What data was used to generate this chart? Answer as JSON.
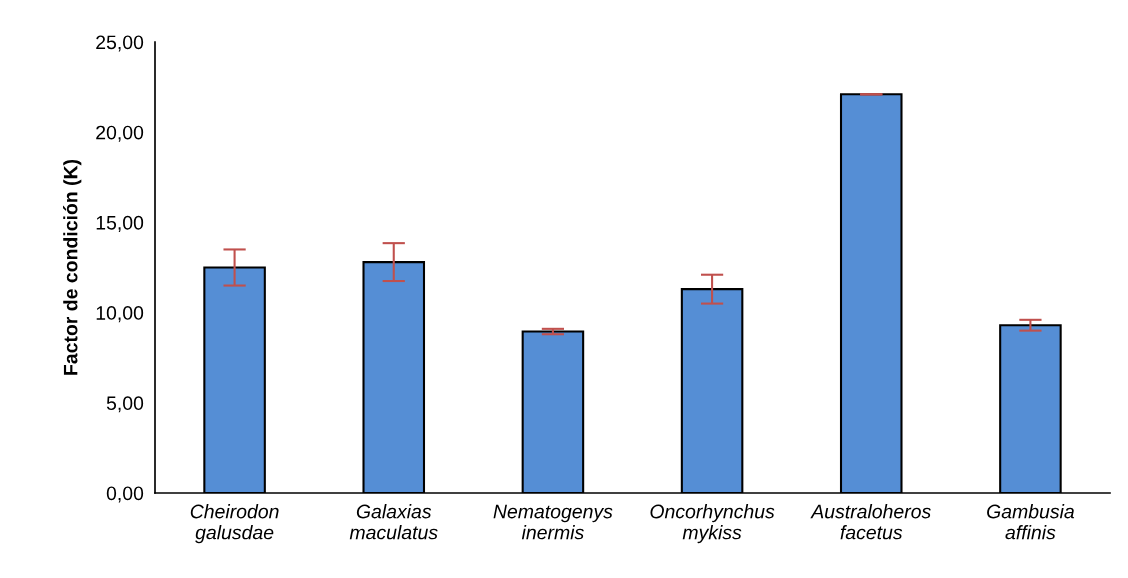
{
  "chart_data": {
    "type": "bar",
    "ylabel": "Factor de condición (K)",
    "categories": [
      "Cheirodon\ngalusdae",
      "Galaxias\nmaculatus",
      "Nematogenys\ninermis",
      "Oncorhynchus\nmykiss",
      "Australoheros\nfacetus",
      "Gambusia\naffinis"
    ],
    "values": [
      12.5,
      12.8,
      8.95,
      11.3,
      22.1,
      9.3
    ],
    "errors": [
      1.0,
      1.05,
      0.15,
      0.8,
      0.0,
      0.3
    ],
    "color": "#558ed5",
    "ylim": [
      0,
      25
    ],
    "yticks": [
      {
        "value": 0,
        "label": "0,00"
      },
      {
        "value": 5,
        "label": "5,00"
      },
      {
        "value": 10,
        "label": "10,00"
      },
      {
        "value": 15,
        "label": "15,00"
      },
      {
        "value": 20,
        "label": "20,00"
      },
      {
        "value": 25,
        "label": "25,00"
      }
    ],
    "grid": false
  }
}
